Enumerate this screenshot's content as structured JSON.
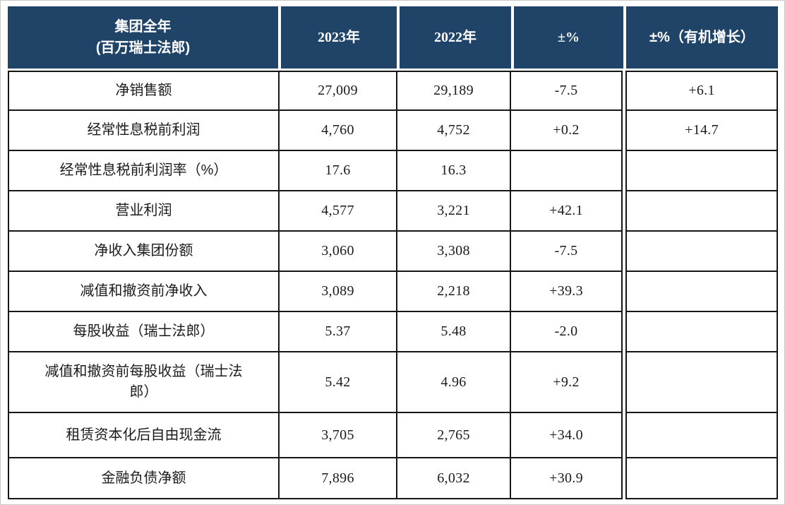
{
  "colors": {
    "header_bg": "#1F4468",
    "header_text": "#FFFFFF",
    "border_color": "#161616",
    "body_text": "#1B1B1B",
    "page_border": "#C8C8C8"
  },
  "table": {
    "header": {
      "col1_line1": "集团全年",
      "col1_line2": "(百万瑞士法郎)",
      "col2": "2023年",
      "col3": "2022年",
      "col4": "±%",
      "col5": "±%（有机增长）"
    },
    "rows": [
      {
        "label": "净销售额",
        "y2023": "27,009",
        "y2022": "29,189",
        "pct": "-7.5",
        "organic": "+6.1"
      },
      {
        "label": "经常性息税前利润",
        "y2023": "4,760",
        "y2022": "4,752",
        "pct": "+0.2",
        "organic": "+14.7"
      },
      {
        "label": "经常性息税前利润率（%）",
        "y2023": "17.6",
        "y2022": "16.3",
        "pct": "",
        "organic": ""
      },
      {
        "label": "营业利润",
        "y2023": "4,577",
        "y2022": "3,221",
        "pct": "+42.1",
        "organic": ""
      },
      {
        "label": "净收入集团份额",
        "y2023": "3,060",
        "y2022": "3,308",
        "pct": "-7.5",
        "organic": ""
      },
      {
        "label": "减值和撤资前净收入",
        "y2023": "3,089",
        "y2022": "2,218",
        "pct": "+39.3",
        "organic": ""
      },
      {
        "label": "每股收益（瑞士法郎）",
        "y2023": "5.37",
        "y2022": "5.48",
        "pct": "-2.0",
        "organic": ""
      },
      {
        "label": "减值和撤资前每股收益（瑞士法郎）",
        "y2023": "5.42",
        "y2022": "4.96",
        "pct": "+9.2",
        "organic": ""
      },
      {
        "label": "租赁资本化后自由现金流",
        "y2023": "3,705",
        "y2022": "2,765",
        "pct": "+34.0",
        "organic": ""
      },
      {
        "label": "金融负债净额",
        "y2023": "7,896",
        "y2022": "6,032",
        "pct": "+30.9",
        "organic": ""
      }
    ]
  }
}
